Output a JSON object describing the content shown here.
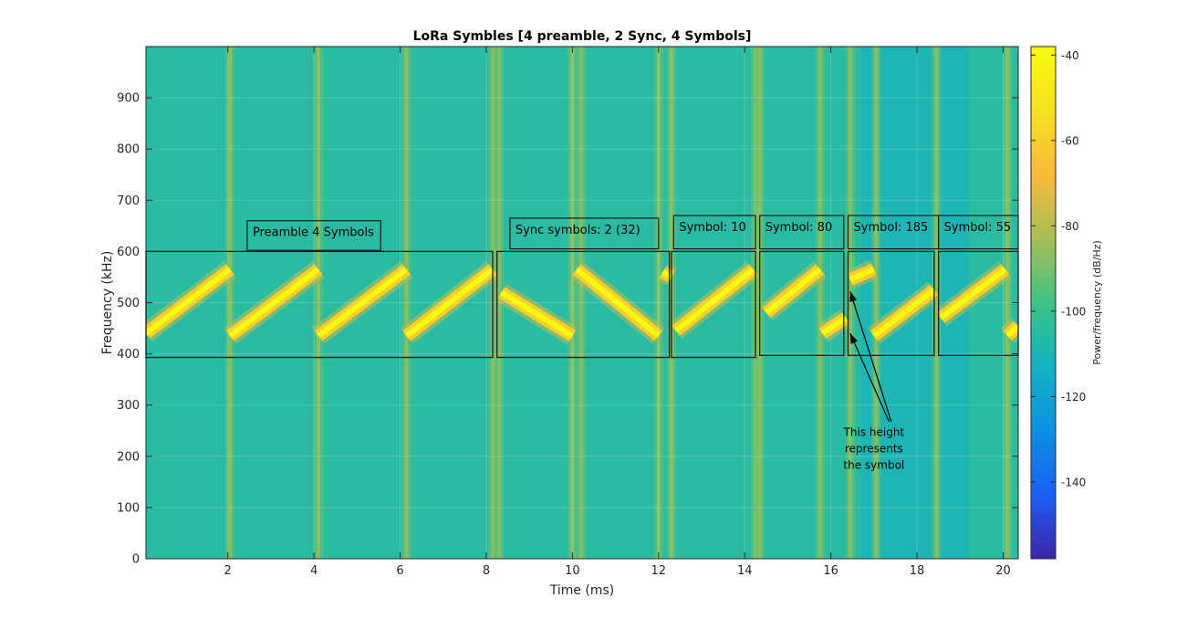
{
  "chart_data": {
    "type": "heatmap",
    "title": "LoRa Symbles [4 preamble, 2 Sync, 4 Symbols]",
    "xlabel": "Time (ms)",
    "ylabel": "Frequency (kHz)",
    "xlim": [
      0.1,
      20.35
    ],
    "ylim": [
      0,
      1000
    ],
    "xticks": [
      2,
      4,
      6,
      8,
      10,
      12,
      14,
      16,
      18,
      20
    ],
    "yticks": [
      0,
      100,
      200,
      300,
      400,
      500,
      600,
      700,
      800,
      900
    ],
    "grid": true,
    "colorbar": {
      "label": "Power/frequency (dB/Hz)",
      "ticks": [
        -40,
        -60,
        -80,
        -100,
        -120,
        -140
      ],
      "range": [
        -158,
        -38
      ],
      "colors": [
        "#3d26a8",
        "#1b5ff5",
        "#0c91e0",
        "#13b2c2",
        "#3ec286",
        "#a6bf57",
        "#f9b93a",
        "#f5e122",
        "#f9fb0e"
      ],
      "background_level": -105
    },
    "chirps": [
      {
        "t0": 0.1,
        "t1": 2.05,
        "f0": 440,
        "f1": 565
      },
      {
        "t0": 2.05,
        "t1": 4.1,
        "f0": 435,
        "f1": 565
      },
      {
        "t0": 4.1,
        "t1": 6.15,
        "f0": 435,
        "f1": 565
      },
      {
        "t0": 6.15,
        "t1": 8.15,
        "f0": 435,
        "f1": 565
      },
      {
        "t0": 8.35,
        "t1": 10.0,
        "f0": 520,
        "f1": 435
      },
      {
        "t0": 10.1,
        "t1": 12.0,
        "f0": 565,
        "f1": 435
      },
      {
        "t0": 12.1,
        "t1": 12.3,
        "f0": 560,
        "f1": 550
      },
      {
        "t0": 12.4,
        "t1": 14.2,
        "f0": 445,
        "f1": 565
      },
      {
        "t0": 14.5,
        "t1": 15.75,
        "f0": 480,
        "f1": 565
      },
      {
        "t0": 15.8,
        "t1": 16.35,
        "f0": 440,
        "f1": 470
      },
      {
        "t0": 16.45,
        "t1": 17.0,
        "f0": 545,
        "f1": 565
      },
      {
        "t0": 17.0,
        "t1": 18.4,
        "f0": 435,
        "f1": 525
      },
      {
        "t0": 18.55,
        "t1": 20.05,
        "f0": 470,
        "f1": 565
      },
      {
        "t0": 20.1,
        "t1": 20.35,
        "f0": 435,
        "f1": 455
      }
    ],
    "boundaries": [
      2.05,
      4.1,
      6.15,
      8.15,
      8.3,
      10.0,
      10.2,
      12.0,
      12.3,
      14.25,
      14.35,
      15.75,
      16.45,
      17.05,
      18.45,
      20.1
    ],
    "annotations": {
      "boxes": [
        {
          "t0": 0.1,
          "t1": 8.15,
          "f0": 393,
          "f1": 600
        },
        {
          "t0": 8.25,
          "t1": 12.25,
          "f0": 393,
          "f1": 600
        },
        {
          "t0": 12.3,
          "t1": 14.25,
          "f0": 393,
          "f1": 600
        },
        {
          "t0": 14.35,
          "t1": 16.3,
          "f0": 397,
          "f1": 600
        },
        {
          "t0": 16.4,
          "t1": 18.4,
          "f0": 397,
          "f1": 600
        },
        {
          "t0": 18.5,
          "t1": 20.35,
          "f0": 397,
          "f1": 600
        }
      ],
      "labels": [
        {
          "text": "Preamble 4 Symbols",
          "t0": 2.45,
          "t1": 5.55,
          "f0": 602,
          "f1": 660
        },
        {
          "text": "Sync symbols: 2 (32)",
          "t0": 8.55,
          "t1": 12.0,
          "f0": 605,
          "f1": 665
        },
        {
          "text": "Symbol: 10",
          "t0": 12.35,
          "t1": 14.25,
          "f0": 605,
          "f1": 670
        },
        {
          "text": "Symbol: 80",
          "t0": 14.35,
          "t1": 16.3,
          "f0": 605,
          "f1": 670
        },
        {
          "text": "Symbol: 185",
          "t0": 16.4,
          "t1": 18.5,
          "f0": 605,
          "f1": 670
        },
        {
          "text": "Symbol: 55",
          "t0": 18.5,
          "t1": 20.35,
          "f0": 605,
          "f1": 670
        }
      ],
      "note": {
        "lines": [
          "This height",
          "represents",
          "the symbol"
        ],
        "t": 17.0,
        "f": 240,
        "arrows": [
          {
            "from_t": 17.4,
            "from_f": 268,
            "to_t": 16.45,
            "to_f": 522
          },
          {
            "from_t": 17.35,
            "from_f": 268,
            "to_t": 16.45,
            "to_f": 440
          }
        ]
      }
    }
  }
}
